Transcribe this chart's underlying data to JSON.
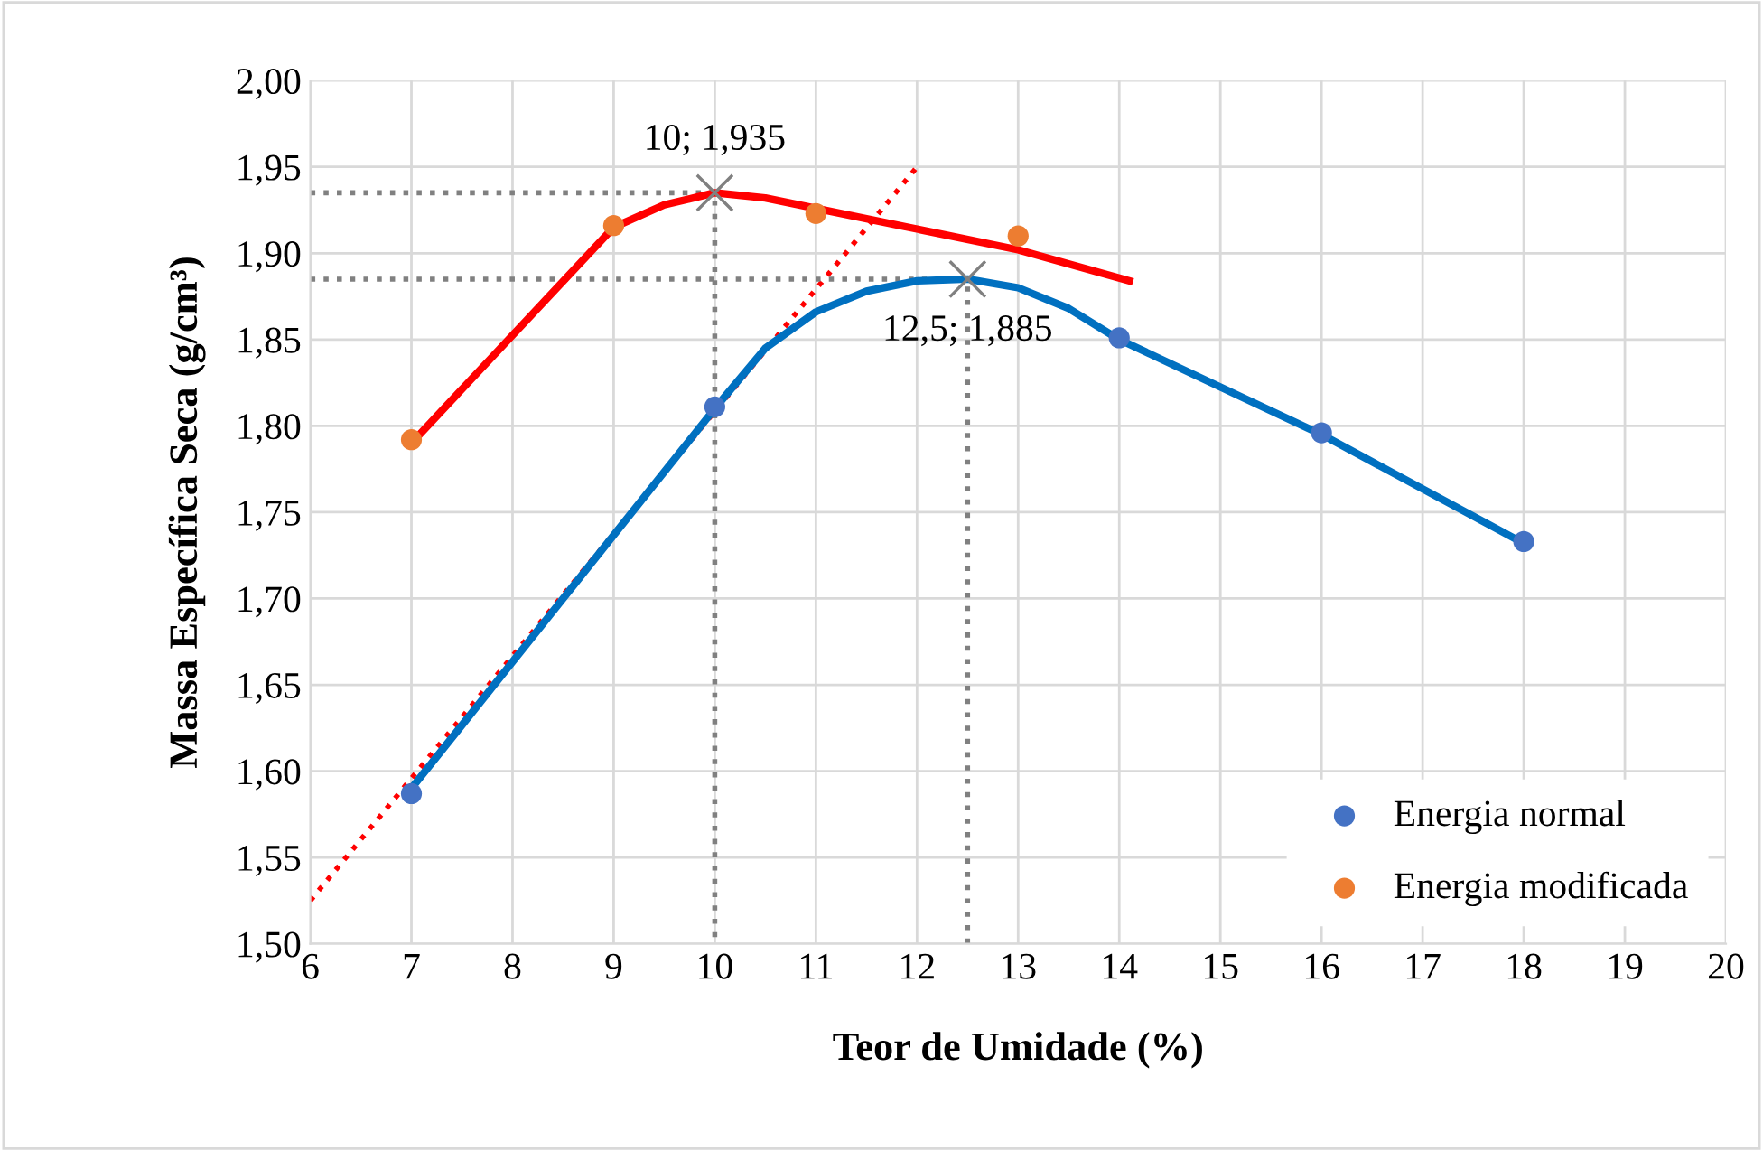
{
  "chart_data": {
    "type": "scatter",
    "xlabel": "Teor de Umidade (%)",
    "ylabel": "Massa Específica Seca (g/cm³)",
    "xlim": [
      6,
      20
    ],
    "xticks": [
      6,
      7,
      8,
      9,
      10,
      11,
      12,
      13,
      14,
      15,
      16,
      17,
      18,
      19,
      20
    ],
    "ylim": [
      1.5,
      2.0
    ],
    "yticks": [
      {
        "value": 1.5,
        "label": "1,50"
      },
      {
        "value": 1.55,
        "label": "1,55"
      },
      {
        "value": 1.6,
        "label": "1,60"
      },
      {
        "value": 1.65,
        "label": "1,65"
      },
      {
        "value": 1.7,
        "label": "1,70"
      },
      {
        "value": 1.75,
        "label": "1,75"
      },
      {
        "value": 1.8,
        "label": "1,80"
      },
      {
        "value": 1.85,
        "label": "1,85"
      },
      {
        "value": 1.9,
        "label": "1,90"
      },
      {
        "value": 1.95,
        "label": "1,95"
      },
      {
        "value": 2.0,
        "label": "2,00"
      }
    ],
    "grid": true,
    "legend": "bottom right",
    "series": [
      {
        "type": "line",
        "color": "#ff0000",
        "line_style": "dotted",
        "x": [
          6,
          12
        ],
        "values": [
          1.525,
          1.95
        ]
      },
      {
        "type": "line",
        "color": "#808080",
        "line_style": "dotted",
        "x": [
          6,
          10,
          10
        ],
        "values": [
          1.935,
          1.935,
          1.5
        ]
      },
      {
        "type": "line",
        "color": "#808080",
        "line_style": "dotted",
        "x": [
          6,
          12.5,
          12.5
        ],
        "values": [
          1.885,
          1.885,
          1.5
        ]
      },
      {
        "type": "line",
        "color": "#0070c0",
        "line_style": "solid",
        "x": [
          7,
          10,
          10.5,
          11,
          11.5,
          12,
          12.5,
          13,
          13.5,
          14,
          16,
          18
        ],
        "values": [
          1.59,
          1.81,
          1.845,
          1.866,
          1.878,
          1.884,
          1.885,
          1.88,
          1.868,
          1.85,
          1.795,
          1.732
        ]
      },
      {
        "type": "line",
        "color": "#ff0000",
        "line_style": "solid",
        "x": [
          7,
          9,
          9.5,
          10,
          10.5,
          11,
          12,
          13,
          14.1
        ],
        "values": [
          1.79,
          1.915,
          1.928,
          1.935,
          1.932,
          1.926,
          1.914,
          1.902,
          1.884
        ]
      },
      {
        "name": "Energia normal",
        "color": "#4472c4",
        "marker": "circle",
        "x": [
          7,
          10,
          14,
          16,
          18
        ],
        "values": [
          1.587,
          1.811,
          1.851,
          1.796,
          1.733
        ]
      },
      {
        "name": "Energia modificada",
        "color": "#ed7d31",
        "marker": "circle",
        "x": [
          7,
          9,
          11,
          13
        ],
        "values": [
          1.792,
          1.916,
          1.923,
          1.91
        ]
      },
      {
        "color": "#808080",
        "marker": "cross",
        "x": [
          10,
          12.5
        ],
        "values": [
          1.935,
          1.885
        ]
      }
    ],
    "annotations": [
      {
        "text": "10; 1,935",
        "x": 10,
        "y": 1.935
      },
      {
        "text": "12,5; 1,885",
        "x": 12.5,
        "y": 1.885
      }
    ]
  }
}
